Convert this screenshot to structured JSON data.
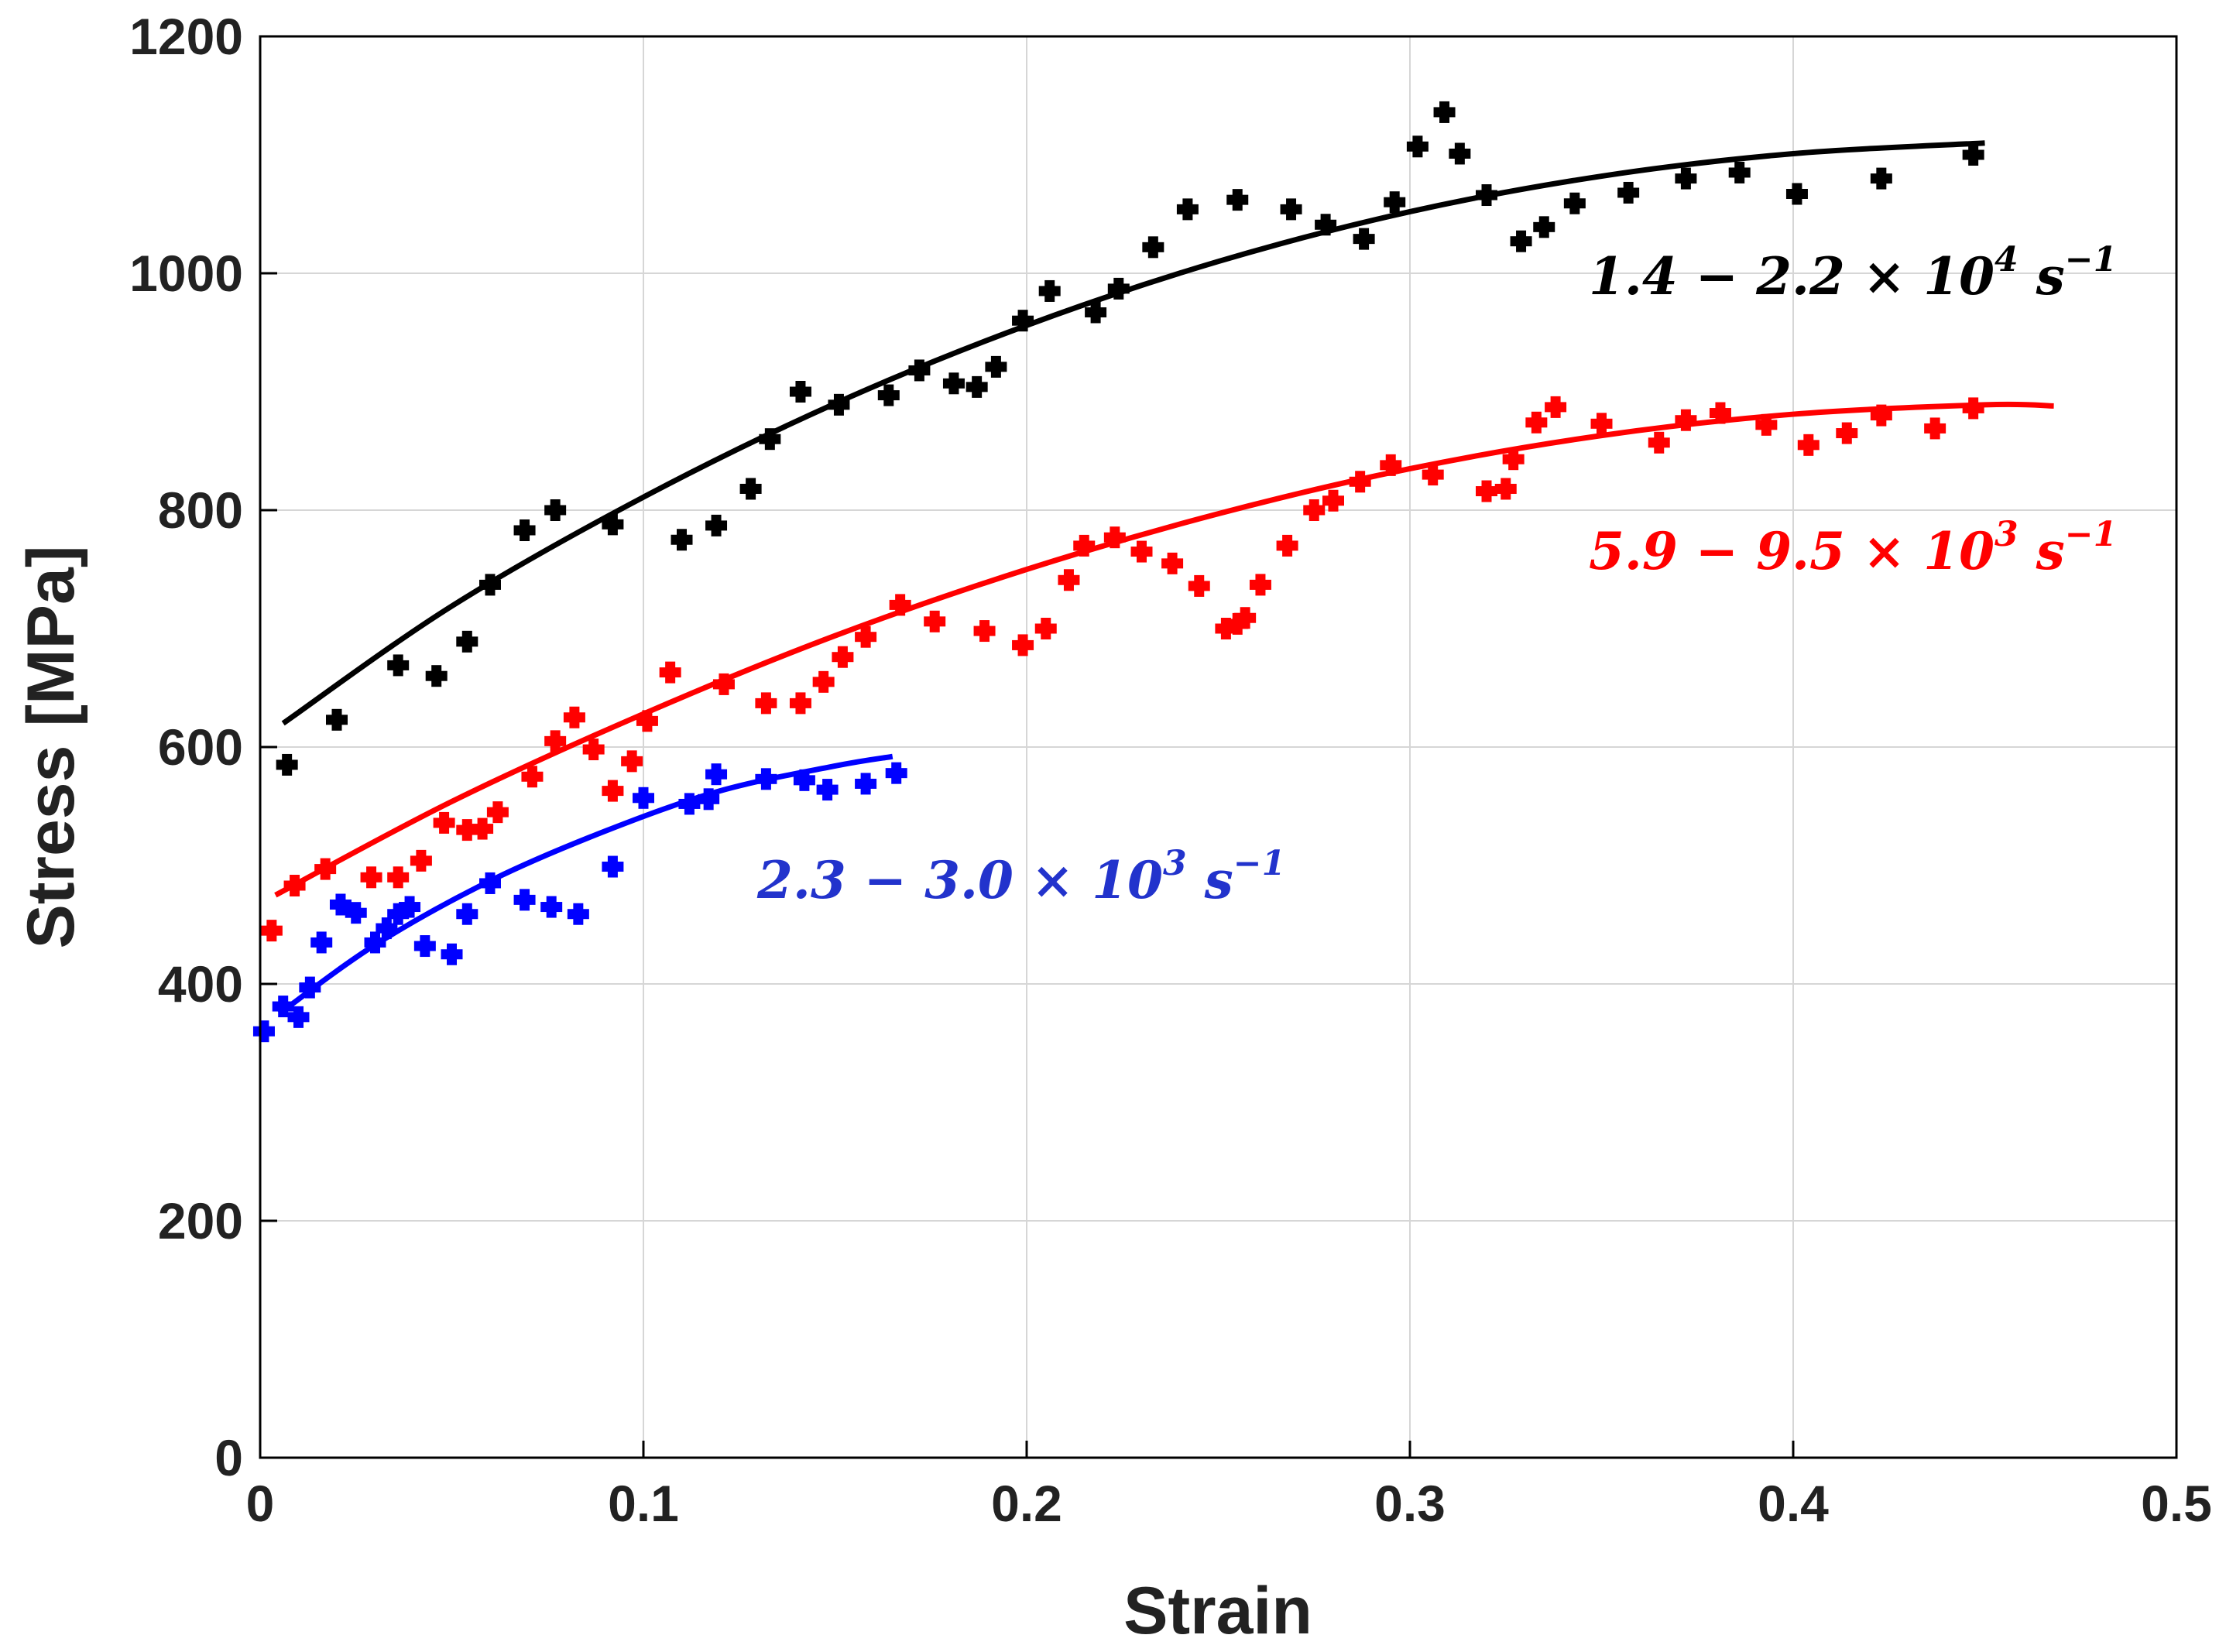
{
  "chart_data": {
    "type": "scatter",
    "title": "",
    "xlabel": "Strain",
    "ylabel": "Stress [MPa]",
    "xlim": [
      0,
      0.5
    ],
    "ylim": [
      0,
      1200
    ],
    "grid": true,
    "xticks": [
      "0",
      "0.1",
      "0.2",
      "0.3",
      "0.4",
      "0.5"
    ],
    "yticks": [
      "0",
      "200",
      "400",
      "600",
      "800",
      "1000",
      "1200"
    ],
    "series": [
      {
        "name": "1.4 − 2.2 × 10⁴ s⁻¹",
        "color": "#000000",
        "label_parts": {
          "base": "1.4 − 2.2 × 10",
          "exp": "4",
          "unit": " s",
          "unit_exp": "−1"
        },
        "points": [
          [
            0.007,
            585
          ],
          [
            0.02,
            623
          ],
          [
            0.036,
            669
          ],
          [
            0.046,
            660
          ],
          [
            0.054,
            689
          ],
          [
            0.06,
            737
          ],
          [
            0.069,
            783
          ],
          [
            0.077,
            800
          ],
          [
            0.092,
            788
          ],
          [
            0.11,
            775
          ],
          [
            0.119,
            787
          ],
          [
            0.128,
            818
          ],
          [
            0.133,
            860
          ],
          [
            0.141,
            900
          ],
          [
            0.151,
            889
          ],
          [
            0.164,
            897
          ],
          [
            0.172,
            918
          ],
          [
            0.181,
            907
          ],
          [
            0.187,
            904
          ],
          [
            0.192,
            921
          ],
          [
            0.199,
            960
          ],
          [
            0.206,
            985
          ],
          [
            0.218,
            967
          ],
          [
            0.224,
            987
          ],
          [
            0.233,
            1022
          ],
          [
            0.242,
            1054
          ],
          [
            0.255,
            1062
          ],
          [
            0.269,
            1054
          ],
          [
            0.278,
            1041
          ],
          [
            0.288,
            1029
          ],
          [
            0.296,
            1060
          ],
          [
            0.302,
            1107
          ],
          [
            0.309,
            1136
          ],
          [
            0.313,
            1101
          ],
          [
            0.32,
            1066
          ],
          [
            0.329,
            1027
          ],
          [
            0.335,
            1039
          ],
          [
            0.343,
            1059
          ],
          [
            0.357,
            1068
          ],
          [
            0.372,
            1080
          ],
          [
            0.386,
            1085
          ],
          [
            0.401,
            1067
          ],
          [
            0.423,
            1080
          ],
          [
            0.447,
            1100
          ]
        ],
        "fit": [
          [
            0.006,
            620
          ],
          [
            0.05,
            719
          ],
          [
            0.1,
            811
          ],
          [
            0.15,
            890
          ],
          [
            0.2,
            956
          ],
          [
            0.25,
            1010
          ],
          [
            0.3,
            1052
          ],
          [
            0.35,
            1082
          ],
          [
            0.4,
            1101
          ],
          [
            0.45,
            1110
          ]
        ]
      },
      {
        "name": "5.9 − 9.5 × 10³ s⁻¹",
        "color": "#ff0000",
        "label_parts": {
          "base": "5.9 − 9.5 × 10",
          "exp": "3",
          "unit": " s",
          "unit_exp": "−1"
        },
        "points": [
          [
            0.003,
            445
          ],
          [
            0.009,
            483
          ],
          [
            0.017,
            497
          ],
          [
            0.029,
            490
          ],
          [
            0.036,
            490
          ],
          [
            0.042,
            504
          ],
          [
            0.048,
            536
          ],
          [
            0.054,
            530
          ],
          [
            0.058,
            531
          ],
          [
            0.062,
            545
          ],
          [
            0.071,
            575
          ],
          [
            0.077,
            605
          ],
          [
            0.082,
            625
          ],
          [
            0.087,
            598
          ],
          [
            0.092,
            563
          ],
          [
            0.097,
            588
          ],
          [
            0.101,
            622
          ],
          [
            0.107,
            663
          ],
          [
            0.121,
            653
          ],
          [
            0.132,
            637
          ],
          [
            0.141,
            637
          ],
          [
            0.147,
            655
          ],
          [
            0.152,
            676
          ],
          [
            0.158,
            693
          ],
          [
            0.167,
            720
          ],
          [
            0.176,
            706
          ],
          [
            0.189,
            698
          ],
          [
            0.199,
            686
          ],
          [
            0.205,
            700
          ],
          [
            0.211,
            741
          ],
          [
            0.215,
            770
          ],
          [
            0.223,
            777
          ],
          [
            0.23,
            765
          ],
          [
            0.238,
            755
          ],
          [
            0.245,
            736
          ],
          [
            0.252,
            700
          ],
          [
            0.255,
            704
          ],
          [
            0.257,
            709
          ],
          [
            0.261,
            737
          ],
          [
            0.268,
            770
          ],
          [
            0.275,
            800
          ],
          [
            0.28,
            808
          ],
          [
            0.287,
            824
          ],
          [
            0.295,
            838
          ],
          [
            0.306,
            830
          ],
          [
            0.32,
            816
          ],
          [
            0.325,
            818
          ],
          [
            0.327,
            843
          ],
          [
            0.333,
            874
          ],
          [
            0.338,
            887
          ],
          [
            0.35,
            873
          ],
          [
            0.365,
            857
          ],
          [
            0.372,
            876
          ],
          [
            0.381,
            882
          ],
          [
            0.393,
            872
          ],
          [
            0.404,
            855
          ],
          [
            0.414,
            865
          ],
          [
            0.423,
            880
          ],
          [
            0.437,
            869
          ],
          [
            0.447,
            886
          ]
        ],
        "fit": [
          [
            0.004,
            475
          ],
          [
            0.05,
            554
          ],
          [
            0.1,
            628
          ],
          [
            0.15,
            694
          ],
          [
            0.2,
            750
          ],
          [
            0.25,
            797
          ],
          [
            0.3,
            835
          ],
          [
            0.35,
            863
          ],
          [
            0.4,
            881
          ],
          [
            0.45,
            889
          ],
          [
            0.468,
            888
          ]
        ]
      },
      {
        "name": "2.3 − 3.0 × 10³ s⁻¹",
        "color": "#0000ff",
        "label_parts": {
          "base": "2.3 − 3.0 × 10",
          "exp": "3",
          "unit": " s",
          "unit_exp": "−1"
        },
        "points": [
          [
            0.001,
            360
          ],
          [
            0.006,
            381
          ],
          [
            0.01,
            372
          ],
          [
            0.013,
            397
          ],
          [
            0.016,
            435
          ],
          [
            0.021,
            467
          ],
          [
            0.025,
            460
          ],
          [
            0.03,
            435
          ],
          [
            0.033,
            447
          ],
          [
            0.036,
            459
          ],
          [
            0.039,
            465
          ],
          [
            0.043,
            432
          ],
          [
            0.05,
            425
          ],
          [
            0.054,
            459
          ],
          [
            0.06,
            485
          ],
          [
            0.069,
            471
          ],
          [
            0.076,
            465
          ],
          [
            0.083,
            459
          ],
          [
            0.092,
            499
          ],
          [
            0.1,
            557
          ],
          [
            0.112,
            552
          ],
          [
            0.117,
            556
          ],
          [
            0.119,
            577
          ],
          [
            0.132,
            573
          ],
          [
            0.142,
            572
          ],
          [
            0.148,
            564
          ],
          [
            0.158,
            569
          ],
          [
            0.166,
            578
          ]
        ],
        "fit": [
          [
            0.005,
            375
          ],
          [
            0.03,
            433
          ],
          [
            0.06,
            487
          ],
          [
            0.09,
            529
          ],
          [
            0.12,
            563
          ],
          [
            0.15,
            584
          ],
          [
            0.165,
            592
          ]
        ]
      }
    ]
  }
}
